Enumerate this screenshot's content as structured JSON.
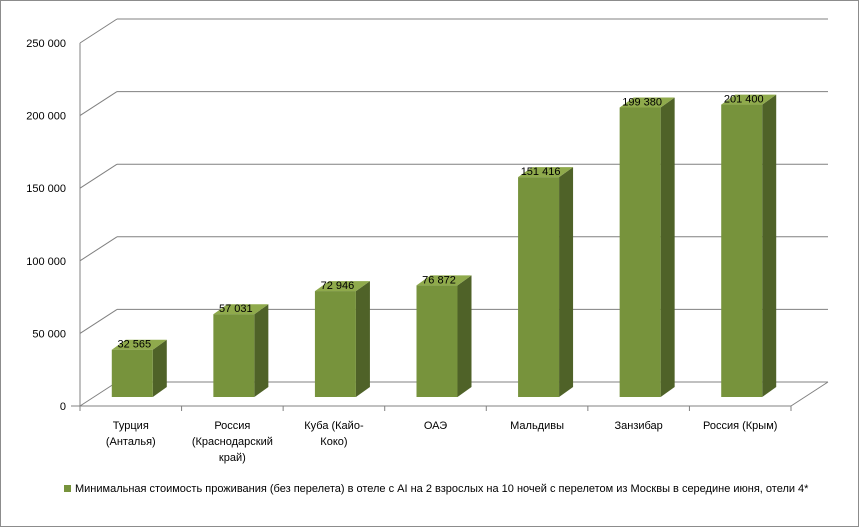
{
  "chart_data": {
    "type": "bar",
    "style": "3d-column",
    "categories": [
      [
        "Турция",
        "(Анталья)"
      ],
      [
        "Россия",
        "(Краснодарский",
        "край)"
      ],
      [
        "Куба (Кайо-",
        "Коко)"
      ],
      [
        "ОАЭ"
      ],
      [
        "Мальдивы"
      ],
      [
        "Занзибар"
      ],
      [
        "Россия (Крым)"
      ]
    ],
    "series": [
      {
        "name": "Минимальная стоимость проживания  (без перелета) в отеле с AI на 2 взрослых на 10 ночей с перелетом из Москвы в середине июня, отели 4*",
        "values": [
          32565,
          57031,
          72946,
          76872,
          151416,
          199380,
          201400
        ],
        "labels": [
          "32 565",
          "57 031",
          "72 946",
          "76 872",
          "151 416",
          "199 380",
          "201 400"
        ]
      }
    ],
    "yticks": [
      "0",
      "50 000",
      "100 000",
      "150 000",
      "200 000",
      "250 000"
    ],
    "ylim": [
      0,
      250000
    ],
    "grid": true,
    "legend_position": "bottom",
    "colors": {
      "front": "#77933c",
      "side": "#4f6228",
      "top": "#8faa4c",
      "grid": "#808080"
    }
  }
}
